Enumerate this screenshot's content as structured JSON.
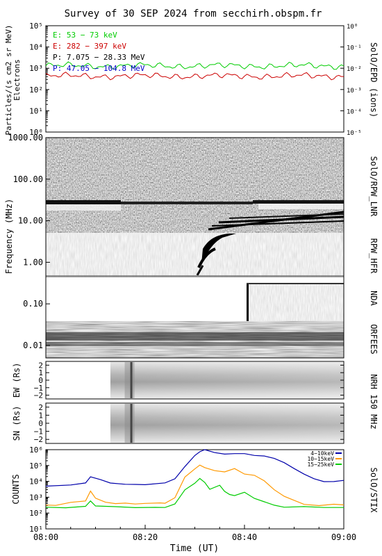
{
  "title": "Survey of 30 SEP 2024 from secchirh.obspm.fr",
  "chart_data": [
    {
      "type": "line",
      "panel": "SolO/EPD",
      "right_label": "SolO/EPD  (ions)",
      "ylabel_lines": [
        "Particles/(s cm2 sr MeV)",
        "Electrons"
      ],
      "ylim": [
        1,
        100000
      ],
      "y_scale": "log",
      "y_ticks": [
        "10⁰",
        "10¹",
        "10²",
        "10³",
        "10⁴",
        "10⁵"
      ],
      "y2_ticks": [
        "10⁻⁵",
        "10⁻⁴",
        "10⁻³",
        "10⁻²",
        "10⁻¹",
        "10⁰"
      ],
      "legend": [
        {
          "label": "E: 53 − 73 keV",
          "color": "#00cc00"
        },
        {
          "label": "E: 282 − 397 keV",
          "color": "#cc0000"
        },
        {
          "label": "P: 7.075 − 28.33 MeV",
          "color": "#000000"
        },
        {
          "label": "P: 47.05 − 104.8 MeV",
          "color": "#0000cc"
        }
      ],
      "series": [
        {
          "name": "E: 53 − 73 keV",
          "color": "#00cc00",
          "base": 1300
        },
        {
          "name": "E: 282 − 397 keV",
          "color": "#cc0000",
          "base": 430
        }
      ]
    },
    {
      "type": "heatmap",
      "panel": "radio spectrogram",
      "ylabel": "Frequency (MHz)",
      "y_scale": "log",
      "ylim": [
        1000,
        0.005
      ],
      "y_ticks": [
        {
          "v": 0.01,
          "label": "0.01"
        },
        {
          "v": 0.1,
          "label": "0.10"
        },
        {
          "v": 1,
          "label": "1.00"
        },
        {
          "v": 10,
          "label": "10.00"
        },
        {
          "v": 100,
          "label": "100.00"
        },
        {
          "v": 1000,
          "label": "1000.00"
        }
      ],
      "instruments": [
        "SolO/RPW_LNR",
        "RPW_HFR",
        "NDA",
        "ORFEES"
      ]
    },
    {
      "type": "heatmap",
      "panel": "NRH EW",
      "ylabel": "EW (Rs)",
      "ylim": [
        -2.5,
        2.5
      ],
      "y_ticks": [
        "2",
        "1",
        "0",
        "−1",
        "−2"
      ],
      "tick_values": [
        2,
        1,
        0,
        -1,
        -2
      ],
      "right_label": "NRH 150 MHz",
      "start": "08:13",
      "bright_line": "08:17"
    },
    {
      "type": "heatmap",
      "panel": "NRH SN",
      "ylabel": "SN (Rs)",
      "ylim": [
        -2.5,
        2.5
      ],
      "y_ticks": [
        "2",
        "1",
        "0",
        "−1",
        "−2"
      ],
      "tick_values": [
        2,
        1,
        0,
        -1,
        -2
      ],
      "start": "08:13",
      "bright_line": "08:17"
    },
    {
      "type": "line",
      "panel": "SolO/STIX",
      "ylabel": "COUNTS",
      "right_label": "SolO/STIX",
      "y_scale": "log",
      "ylim": [
        10,
        1000000
      ],
      "y_ticks": [
        "10¹",
        "10²",
        "10³",
        "10⁴",
        "10⁵",
        "10⁶"
      ],
      "xlabel": "Time (UT)",
      "x_ticks": [
        "08:00",
        "08:20",
        "08:40",
        "09:00"
      ],
      "xlim_min": [
        0,
        60
      ],
      "series": [
        {
          "name": "4−10keV",
          "color": "#0000aa",
          "points": [
            [
              0,
              5000
            ],
            [
              5,
              5500
            ],
            [
              8,
              8500
            ],
            [
              9,
              20000
            ],
            [
              11,
              12000
            ],
            [
              13,
              8000
            ],
            [
              16,
              6500
            ],
            [
              18,
              6000
            ],
            [
              20,
              6500
            ],
            [
              24,
              7500
            ],
            [
              26,
              15000
            ],
            [
              28,
              90000
            ],
            [
              30,
              400000
            ],
            [
              31,
              700000
            ],
            [
              32,
              1000000
            ],
            [
              34,
              700000
            ],
            [
              36,
              500000
            ],
            [
              38,
              550000
            ],
            [
              40,
              600000
            ],
            [
              42,
              420000
            ],
            [
              44,
              380000
            ],
            [
              46,
              300000
            ],
            [
              48,
              150000
            ],
            [
              50,
              60000
            ],
            [
              52,
              30000
            ],
            [
              54,
              15000
            ],
            [
              56,
              9000
            ],
            [
              58,
              10000
            ],
            [
              60,
              12000
            ]
          ]
        },
        {
          "name": "10−15keV",
          "color": "#ff9900",
          "points": [
            [
              0,
              300
            ],
            [
              2,
              320
            ],
            [
              5,
              450
            ],
            [
              8,
              600
            ],
            [
              9,
              2600
            ],
            [
              10,
              900
            ],
            [
              12,
              450
            ],
            [
              14,
              400
            ],
            [
              16,
              450
            ],
            [
              18,
              350
            ],
            [
              20,
              400
            ],
            [
              23,
              450
            ],
            [
              24,
              400
            ],
            [
              26,
              900
            ],
            [
              28,
              20000
            ],
            [
              30,
              60000
            ],
            [
              31,
              100000
            ],
            [
              32,
              70000
            ],
            [
              34,
              50000
            ],
            [
              36,
              40000
            ],
            [
              38,
              60000
            ],
            [
              40,
              30000
            ],
            [
              42,
              25000
            ],
            [
              44,
              10000
            ],
            [
              46,
              3000
            ],
            [
              48,
              1200
            ],
            [
              50,
              600
            ],
            [
              52,
              350
            ],
            [
              55,
              300
            ],
            [
              58,
              350
            ],
            [
              60,
              350
            ]
          ]
        },
        {
          "name": "15−25keV",
          "color": "#00cc00",
          "points": [
            [
              0,
              220
            ],
            [
              4,
              230
            ],
            [
              8,
              260
            ],
            [
              9,
              600
            ],
            [
              10,
              300
            ],
            [
              14,
              240
            ],
            [
              18,
              220
            ],
            [
              22,
              240
            ],
            [
              24,
              230
            ],
            [
              26,
              350
            ],
            [
              28,
              3000
            ],
            [
              30,
              8000
            ],
            [
              31,
              15000
            ],
            [
              32,
              8000
            ],
            [
              33,
              3000
            ],
            [
              35,
              6000
            ],
            [
              36,
              2500
            ],
            [
              37,
              1500
            ],
            [
              38,
              1200
            ],
            [
              40,
              2000
            ],
            [
              42,
              900
            ],
            [
              44,
              500
            ],
            [
              46,
              300
            ],
            [
              48,
              250
            ],
            [
              52,
              240
            ],
            [
              56,
              230
            ],
            [
              60,
              230
            ]
          ]
        }
      ]
    }
  ]
}
